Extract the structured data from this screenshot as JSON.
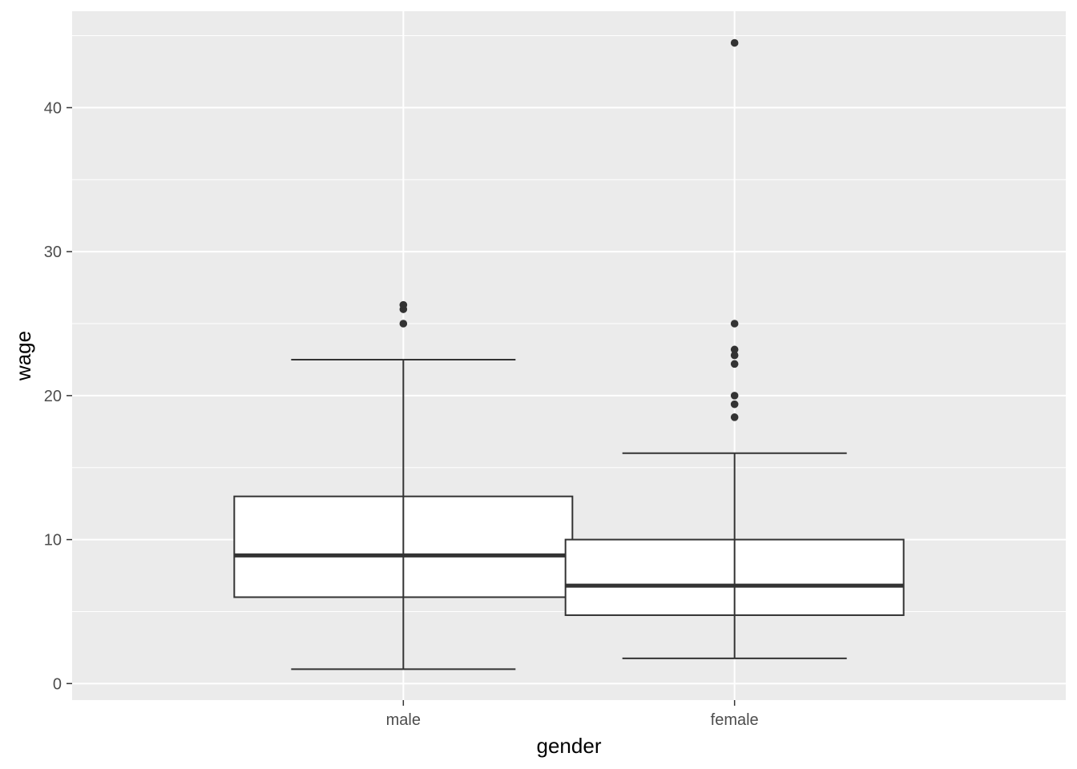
{
  "chart_data": {
    "type": "box",
    "title": "",
    "xlabel": "gender",
    "ylabel": "wage",
    "categories": [
      "male",
      "female"
    ],
    "ylim": [
      -1.15,
      46.7
    ],
    "yticks": [
      0,
      10,
      20,
      30,
      40
    ],
    "grid": true,
    "legend": "none",
    "boxes": [
      {
        "category": "male",
        "whisker_low": 1.0,
        "q1": 6.0,
        "median": 8.9,
        "q3": 13.0,
        "whisker_high": 22.5,
        "outliers": [
          25.0,
          26.0,
          26.3
        ]
      },
      {
        "category": "female",
        "whisker_low": 1.75,
        "q1": 4.75,
        "median": 6.8,
        "q3": 10.0,
        "whisker_high": 16.0,
        "outliers": [
          18.5,
          19.4,
          20.0,
          22.2,
          22.8,
          23.2,
          25.0,
          44.5
        ]
      }
    ],
    "colors": {
      "panel": "#ebebeb",
      "grid": "#ffffff",
      "box_fill": "#ffffff",
      "box_line": "#333333",
      "point": "#333333"
    }
  }
}
